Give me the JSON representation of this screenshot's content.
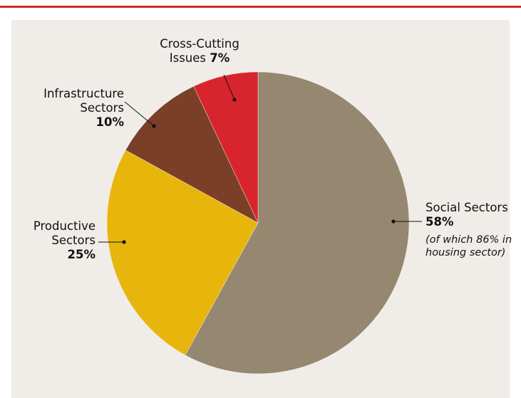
{
  "colors": {
    "accent_rule": "#cf2a2e",
    "panel_bg": "#f0ede8"
  },
  "chart_data": {
    "type": "pie",
    "start": "12 o'clock",
    "direction": "clockwise",
    "slices": [
      {
        "name": "Social Sectors",
        "value": 58,
        "value_label": "58%",
        "color": "#958770",
        "note": "(of which 86% in housing sector)"
      },
      {
        "name": "Productive Sectors",
        "value": 25,
        "value_label": "25%",
        "color": "#e8b50c"
      },
      {
        "name": "Infrastructure Sectors",
        "value": 10,
        "value_label": "10%",
        "color": "#7b3f28"
      },
      {
        "name": "Cross-Cutting Issues",
        "value": 7,
        "value_label": "7%",
        "color": "#d8252d"
      }
    ]
  },
  "labels": {
    "social": {
      "line1": "Social Sectors",
      "pct": "58%",
      "note_line1": "(of which 86% in",
      "note_line2": "housing sector)"
    },
    "productive": {
      "line1": "Productive",
      "line2": "Sectors",
      "pct": "25%"
    },
    "infrastructure": {
      "line1": "Infrastructure",
      "line2": "Sectors",
      "pct": "10%"
    },
    "crosscutting": {
      "line1": "Cross-Cutting",
      "line2": "Issues",
      "pct": "7%"
    }
  }
}
